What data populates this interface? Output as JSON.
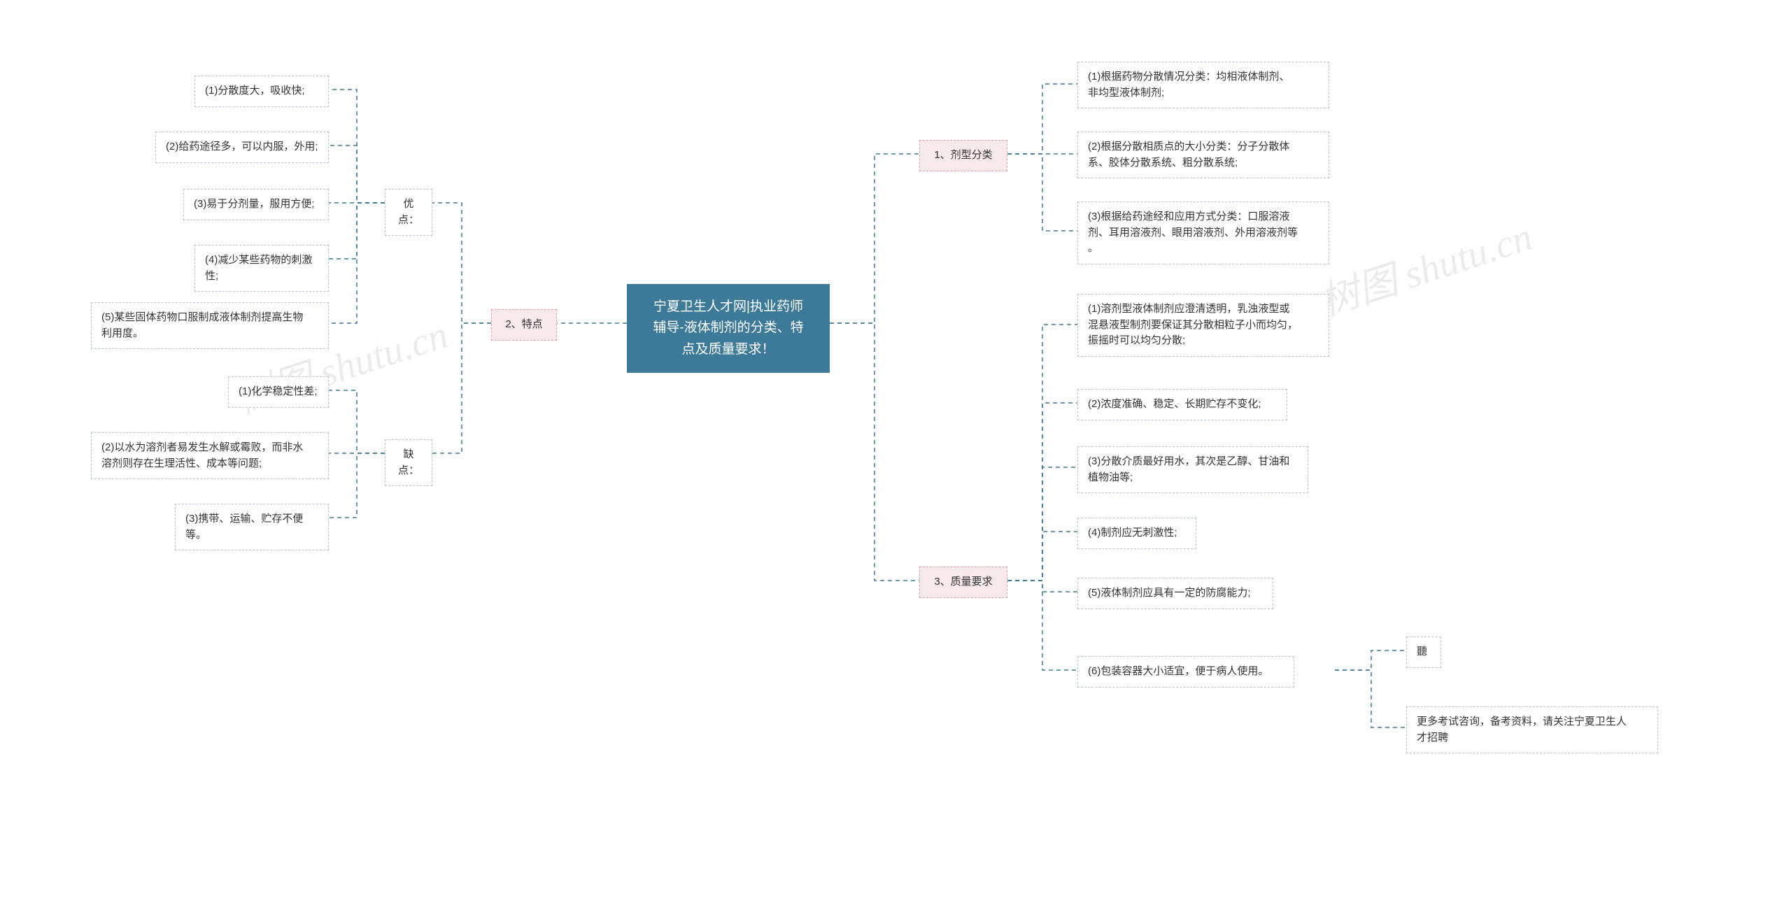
{
  "diagram": {
    "type": "mindmap",
    "background_color": "#ffffff",
    "connector_color": "#3d7a99",
    "connector_stroke_width": 1.5,
    "connector_dash": "6,5",
    "root": {
      "text": "宁夏卫生人才网|执业药师\n辅导-液体制剂的分类、特\n点及质量要求！",
      "bg_color": "#3d7a99",
      "text_color": "#ffffff",
      "fontsize": 19
    },
    "branch_style": {
      "pink_bg": "#f8e9eb",
      "pink_border": "#d9a0a8",
      "gray_border": "#b8c4cc",
      "leaf_bg": "#ffffff",
      "fontsize": 15,
      "text_color": "#333333"
    },
    "left": {
      "label": "2、特点",
      "children": [
        {
          "label": "优点：",
          "children": [
            "(1)分散度大，吸收快;",
            "(2)给药途径多，可以内服，外用;",
            "(3)易于分剂量，服用方便;",
            "(4)减少某些药物的刺激性;",
            "(5)某些固体药物口服制成液体制剂提高生物\n利用度。"
          ]
        },
        {
          "label": "缺点：",
          "children": [
            "(1)化学稳定性差;",
            "(2)以水为溶剂者易发生水解或霉败，而非水\n溶剂则存在生理活性、成本等问题;",
            "(3)携带、运输、贮存不便等。"
          ]
        }
      ]
    },
    "right": [
      {
        "label": "1、剂型分类",
        "children": [
          "(1)根据药物分散情况分类：均相液体制剂、\n非均型液体制剂;",
          "(2)根据分散相质点的大小分类：分子分散体\n系、胶体分散系统、粗分散系统;",
          "(3)根据给药途经和应用方式分类：口服溶液\n剂、耳用溶液剂、眼用溶液剂、外用溶液剂等\n。"
        ]
      },
      {
        "label": "3、质量要求",
        "children": [
          "(1)溶剂型液体制剂应澄清透明，乳浊液型或\n混悬液型制剂要保证其分散相粒子小而均匀，\n振摇时可以均匀分散;",
          "(2)浓度准确、稳定、长期贮存不变化;",
          "(3)分散介质最好用水，其次是乙醇、甘油和\n植物油等;",
          "(4)制剂应无刺激性;",
          "(5)液体制剂应具有一定的防腐能力;",
          "(6)包装容器大小适宜，便于病人使用。"
        ],
        "tail": [
          "聽",
          "更多考试咨询，备考资料，请关注宁夏卫生人\n才招聘"
        ]
      }
    ],
    "watermark": "树图 shutu.cn"
  }
}
